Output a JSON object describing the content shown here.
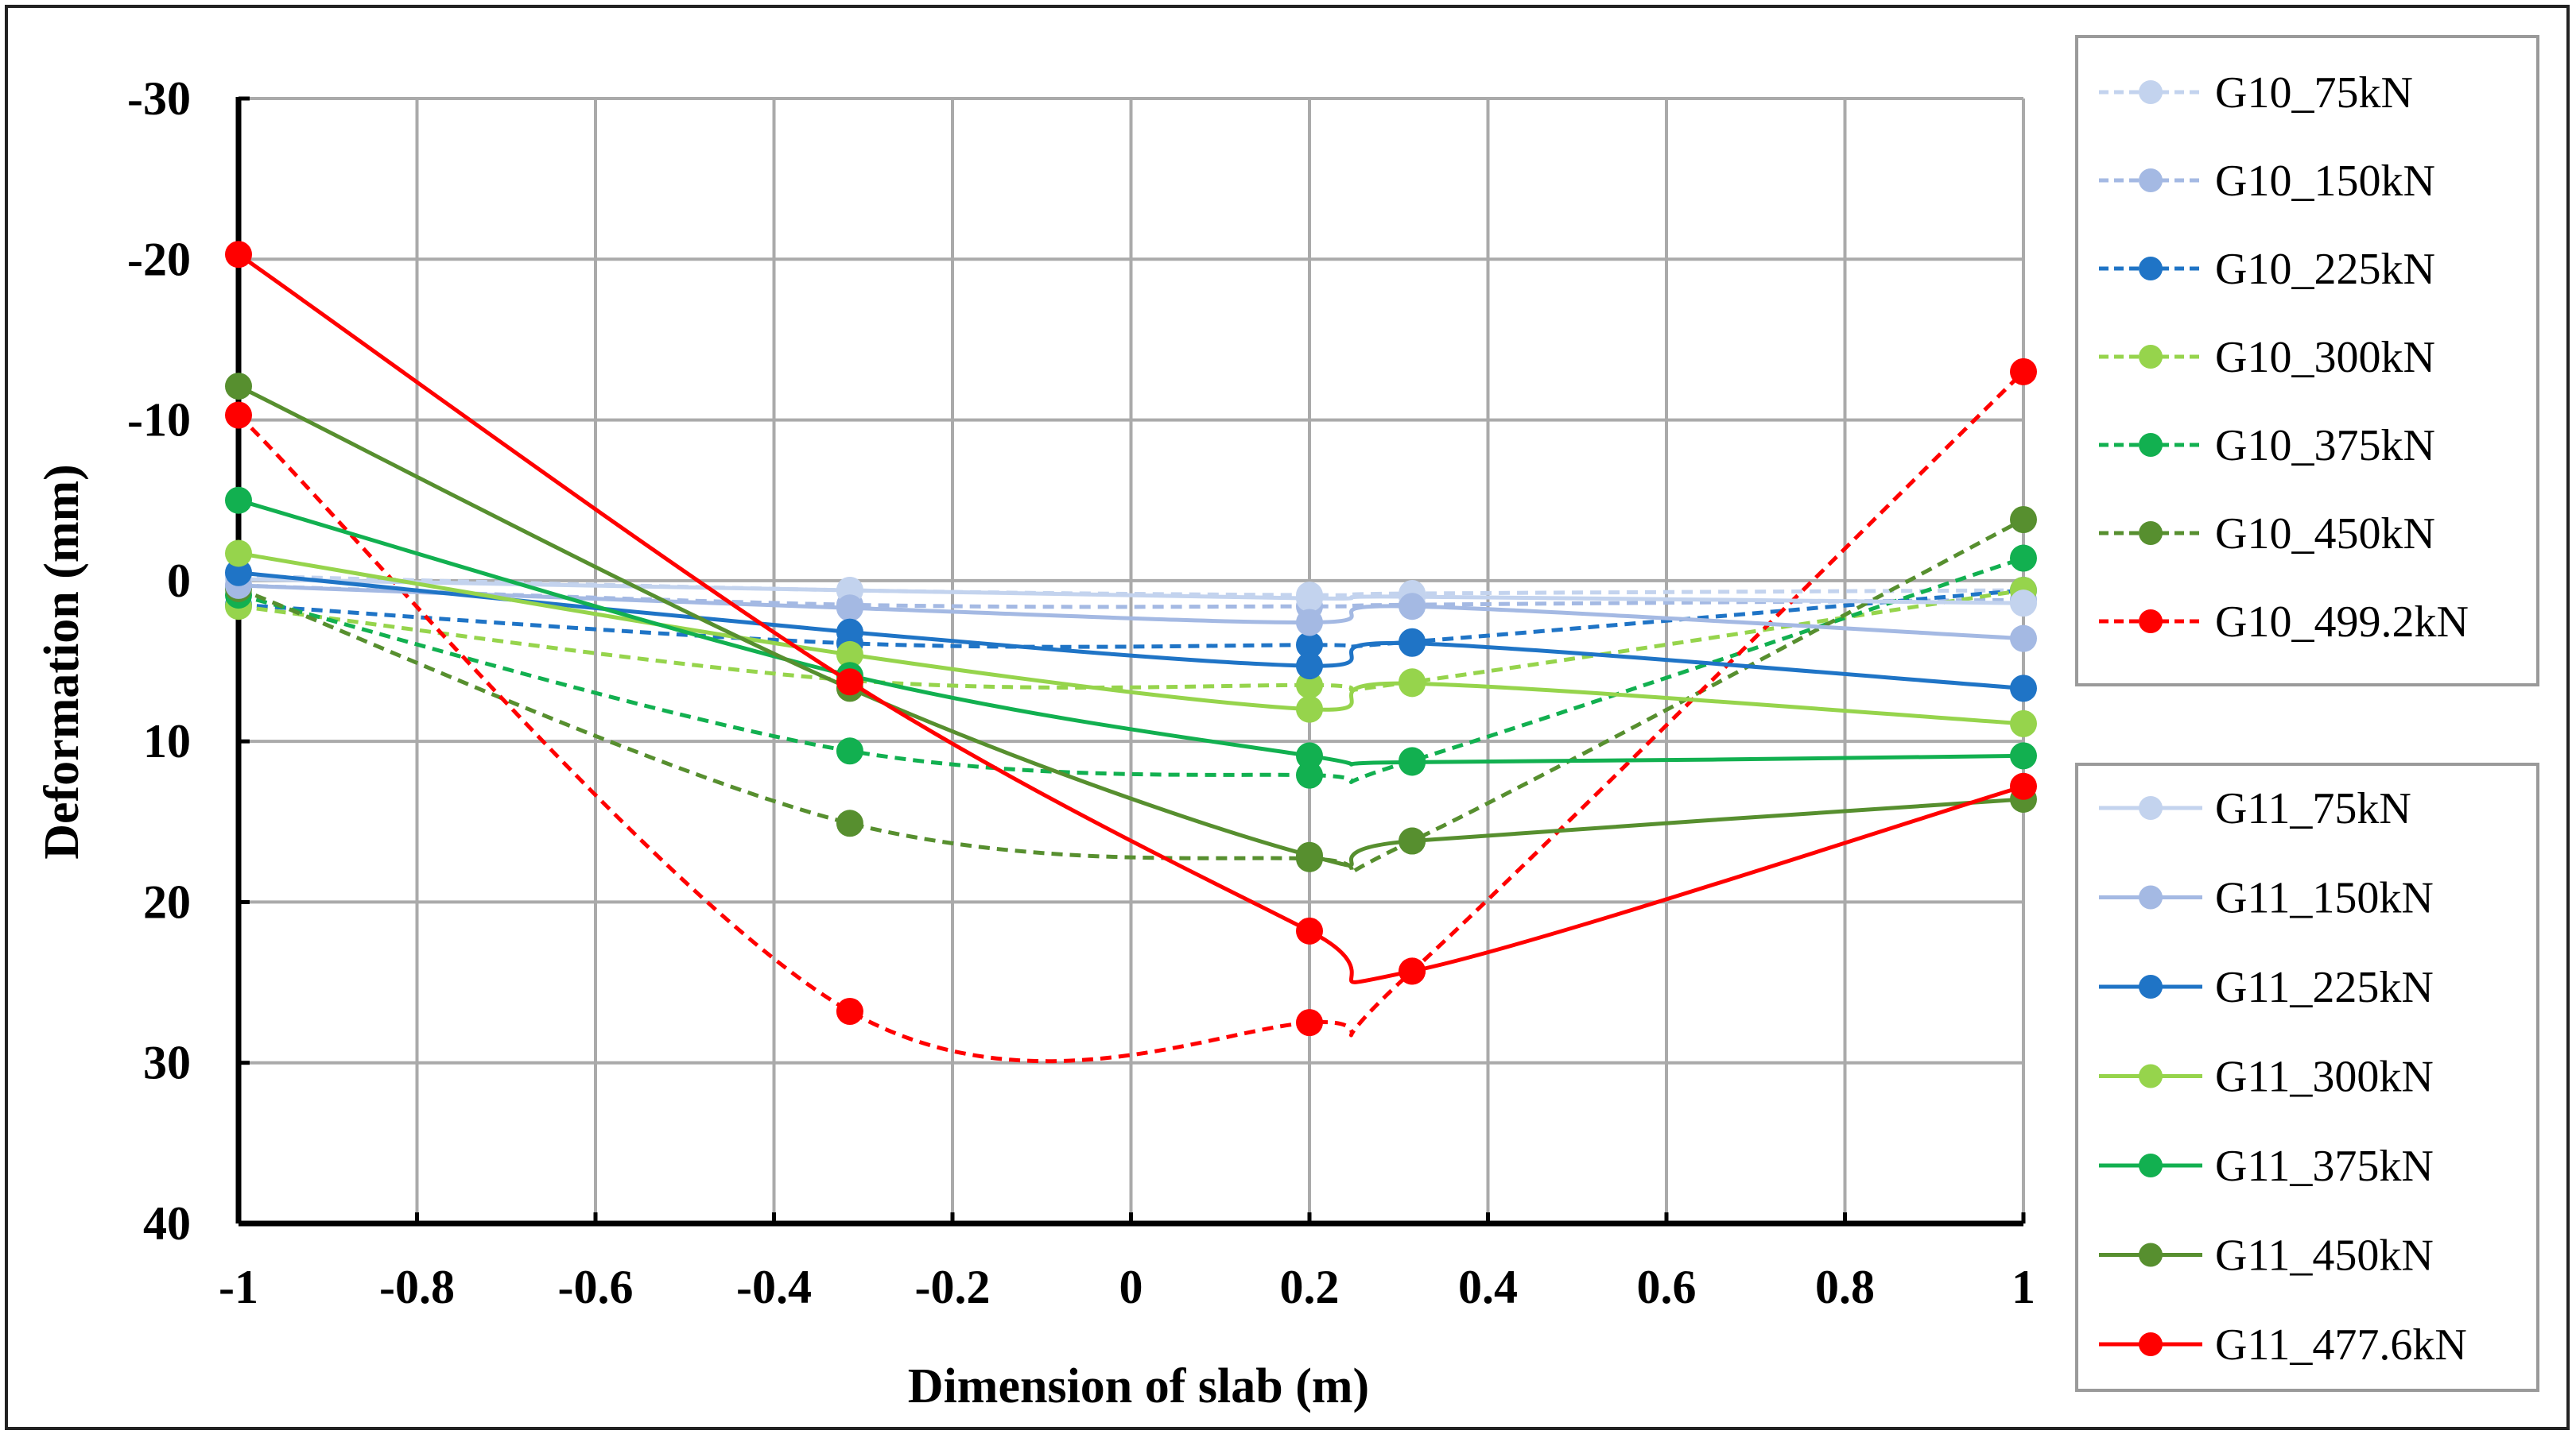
{
  "chart_data": {
    "type": "line",
    "title": "",
    "xlabel": "Dimension of slab (m)",
    "ylabel": "Deformation  (mm)",
    "xlim": [
      -1,
      1
    ],
    "ylim": [
      -30,
      40
    ],
    "y_inverted": true,
    "grid": true,
    "x_ticks": [
      -1,
      -0.8,
      -0.6,
      -0.4,
      -0.2,
      0,
      0.2,
      0.4,
      0.6,
      0.8,
      1
    ],
    "x_tick_labels": [
      "-1",
      "-0.8",
      "-0.6",
      "-0.4",
      "-0.2",
      "0",
      "0.2",
      "0.4",
      "0.6",
      "0.8",
      "1"
    ],
    "y_ticks": [
      -30,
      -20,
      -10,
      0,
      10,
      20,
      30,
      40
    ],
    "y_tick_labels": [
      "-30",
      "-20",
      "-10",
      "0",
      "10",
      "20",
      "30",
      "40"
    ],
    "x": [
      -1,
      -0.315,
      0.2,
      0.315,
      1
    ],
    "legend_groups": [
      {
        "position": "top-right",
        "series": [
          0,
          1,
          2,
          3,
          4,
          5,
          6
        ]
      },
      {
        "position": "bottom-right",
        "series": [
          7,
          8,
          9,
          10,
          11,
          12,
          13
        ]
      }
    ],
    "series": [
      {
        "name": "G10_75kN",
        "color": "#c3d3ee",
        "dashed": true,
        "values": [
          -0.3,
          0.6,
          0.9,
          0.8,
          0.6
        ]
      },
      {
        "name": "G10_150kN",
        "color": "#a4b9e3",
        "dashed": true,
        "values": [
          0.3,
          1.5,
          1.6,
          1.5,
          1.2
        ]
      },
      {
        "name": "G10_225kN",
        "color": "#1f74c6",
        "dashed": true,
        "values": [
          1.5,
          3.9,
          4.0,
          3.8,
          0.6
        ]
      },
      {
        "name": "G10_300kN",
        "color": "#96d44c",
        "dashed": true,
        "values": [
          1.6,
          6.2,
          6.5,
          6.3,
          0.6
        ]
      },
      {
        "name": "G10_375kN",
        "color": "#12b050",
        "dashed": true,
        "values": [
          0.9,
          10.6,
          12.1,
          11.2,
          -1.4
        ]
      },
      {
        "name": "G10_450kN",
        "color": "#578f2f",
        "dashed": true,
        "values": [
          0.5,
          15.1,
          17.3,
          16.2,
          -3.8
        ]
      },
      {
        "name": "G10_499.2kN",
        "color": "#ff0000",
        "dashed": true,
        "values": [
          -10.3,
          26.8,
          27.5,
          24.3,
          -13.0
        ]
      },
      {
        "name": "G11_75kN",
        "color": "#c3d3ee",
        "dashed": false,
        "values": [
          -0.1,
          0.6,
          1.1,
          1.0,
          1.4
        ]
      },
      {
        "name": "G11_150kN",
        "color": "#a4b9e3",
        "dashed": false,
        "values": [
          0.3,
          1.7,
          2.6,
          1.6,
          3.6
        ]
      },
      {
        "name": "G11_225kN",
        "color": "#1f74c6",
        "dashed": false,
        "values": [
          -0.5,
          3.2,
          5.3,
          3.9,
          6.7
        ]
      },
      {
        "name": "G11_300kN",
        "color": "#96d44c",
        "dashed": false,
        "values": [
          -1.7,
          4.6,
          8.0,
          6.4,
          8.9
        ]
      },
      {
        "name": "G11_375kN",
        "color": "#12b050",
        "dashed": false,
        "values": [
          -5.0,
          5.9,
          10.9,
          11.3,
          10.9
        ]
      },
      {
        "name": "G11_450kN",
        "color": "#578f2f",
        "dashed": false,
        "values": [
          -12.1,
          6.7,
          17.1,
          16.2,
          13.6
        ]
      },
      {
        "name": "G11_477.6kN",
        "color": "#ff0000",
        "dashed": false,
        "values": [
          -20.3,
          6.3,
          21.8,
          24.3,
          12.8
        ]
      }
    ]
  }
}
